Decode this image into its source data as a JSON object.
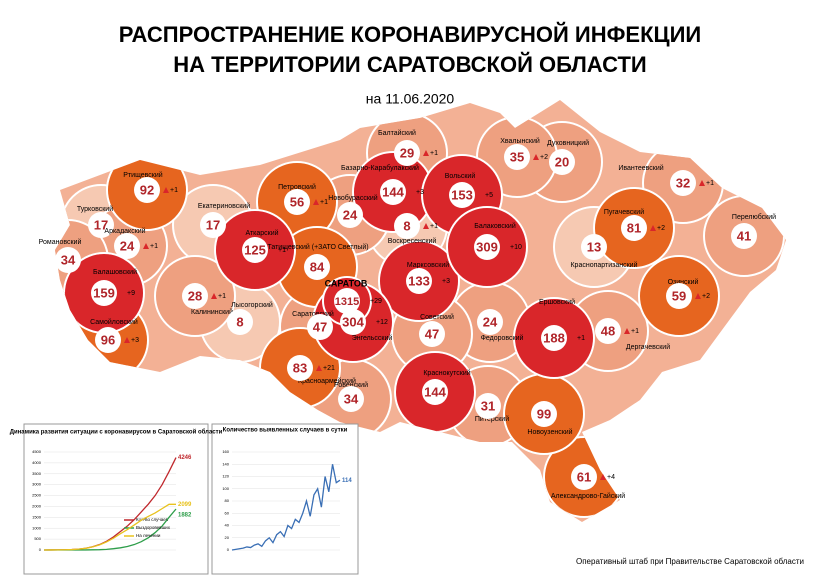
{
  "header": {
    "title_line1": "РАСПРОСТРАНЕНИЕ КОРОНАВИРУСНОЙ ИНФЕКЦИИ",
    "title_line2": "НА ТЕРРИТОРИИ САРАТОВСКОЙ ОБЛАСТИ",
    "date": "на 11.06.2020"
  },
  "districts": [
    {
      "name": "Балтайский",
      "cases": 29,
      "increase": "+1"
    },
    {
      "name": "Хвалынский",
      "cases": 35,
      "increase": "+2"
    },
    {
      "name": "Духовницкий",
      "cases": 20
    },
    {
      "name": "Ртищевский",
      "cases": 92,
      "increase": "+1"
    },
    {
      "name": "Базарно-Карабулакский",
      "cases": 144,
      "increase": "+3"
    },
    {
      "name": "Вольский",
      "cases": 153,
      "increase": "+5"
    },
    {
      "name": "Ивантеевский",
      "cases": 32,
      "increase": "+1"
    },
    {
      "name": "Петровский",
      "cases": 56,
      "increase": "+1"
    },
    {
      "name": "Екатериновский",
      "cases": 17
    },
    {
      "name": "Новобурасский",
      "cases": 24
    },
    {
      "name": "Турковский",
      "cases": 17
    },
    {
      "name": "Воскресенский",
      "cases": 8,
      "increase": "+1"
    },
    {
      "name": "Аркадакский",
      "cases": 24,
      "increase": "+1"
    },
    {
      "name": "Аткарский",
      "cases": 125,
      "increase": "+1"
    },
    {
      "name": "Татищевский (+ЗАТО Светлый)",
      "cases": 84
    },
    {
      "name": "Балаковский",
      "cases": 309,
      "increase": "+10"
    },
    {
      "name": "Пугачевский",
      "cases": 81,
      "increase": "+2"
    },
    {
      "name": "Перелюбский",
      "cases": 41
    },
    {
      "name": "Романовский",
      "cases": 34
    },
    {
      "name": "Краснопартизанский",
      "cases": 13
    },
    {
      "name": "Марксовский",
      "cases": 133,
      "increase": "+3"
    },
    {
      "name": "Балашовский",
      "cases": 159,
      "increase": "+9"
    },
    {
      "name": "Калининский",
      "cases": 28,
      "increase": "+1"
    },
    {
      "name": "Лысогорский",
      "cases": 8
    },
    {
      "name": "Саратовский",
      "cases": 47
    },
    {
      "name": "САРАТОВ",
      "cases": 1315,
      "increase": "+29"
    },
    {
      "name": "Озинский",
      "cases": 59,
      "increase": "+2"
    },
    {
      "name": "Ершовский",
      "cases": 188,
      "increase": "+1"
    },
    {
      "name": "Дергачевский",
      "cases": 48,
      "increase": "+1"
    },
    {
      "name": "Самойловский",
      "cases": 96,
      "increase": "+3"
    },
    {
      "name": "Энгельсский",
      "cases": 304,
      "increase": "+12"
    },
    {
      "name": "Советский",
      "cases": 47
    },
    {
      "name": "Федоровский",
      "cases": 24
    },
    {
      "name": "Красноармейский",
      "cases": 83,
      "increase": "+21"
    },
    {
      "name": "Ровенский",
      "cases": 34
    },
    {
      "name": "Краснокутский",
      "cases": 144
    },
    {
      "name": "Питерский",
      "cases": 31
    },
    {
      "name": "Новоузенский",
      "cases": 99
    },
    {
      "name": "Александрово-Гайский",
      "cases": 61,
      "increase": "+4"
    }
  ],
  "insets": [
    {
      "title": "Динамика развития ситуации с коронавирусом в Саратовской области",
      "ylim": [
        0,
        4500
      ],
      "yticks": [
        0,
        500,
        1000,
        1500,
        2000,
        2500,
        3000,
        3500,
        4000,
        4500
      ],
      "series": [
        {
          "name": "Кол-во случаев",
          "color": "#c0282d",
          "values": [
            0,
            2,
            5,
            10,
            20,
            40,
            80,
            150,
            250,
            400,
            600,
            850,
            1100,
            1400,
            1750,
            2100,
            2500,
            3000,
            3600,
            4246
          ]
        },
        {
          "name": "Выздоровевших",
          "color": "#2e9e4a",
          "values": [
            0,
            0,
            0,
            0,
            0,
            1,
            3,
            8,
            15,
            30,
            60,
            100,
            160,
            250,
            380,
            560,
            800,
            1100,
            1500,
            1882
          ]
        },
        {
          "name": "На лечении",
          "color": "#e8c21e",
          "values": [
            0,
            2,
            5,
            10,
            20,
            39,
            77,
            142,
            235,
            370,
            540,
            750,
            940,
            1150,
            1370,
            1540,
            1700,
            1900,
            2100,
            2099
          ]
        }
      ]
    },
    {
      "title": "Количество выявленных случаев в сутки",
      "ylim": [
        0,
        160
      ],
      "yticks": [
        0,
        20,
        40,
        60,
        80,
        100,
        120,
        140,
        160
      ],
      "series": [
        {
          "name": "Выявлено",
          "color": "#3a6fb5",
          "values": [
            0,
            1,
            2,
            3,
            5,
            4,
            8,
            10,
            6,
            15,
            20,
            12,
            25,
            30,
            22,
            40,
            35,
            50,
            45,
            60,
            80,
            55,
            90,
            100,
            70,
            120,
            95,
            140,
            110,
            114
          ]
        }
      ]
    }
  ],
  "footer": "Оперативный штаб при Правительстве Саратовской области"
}
